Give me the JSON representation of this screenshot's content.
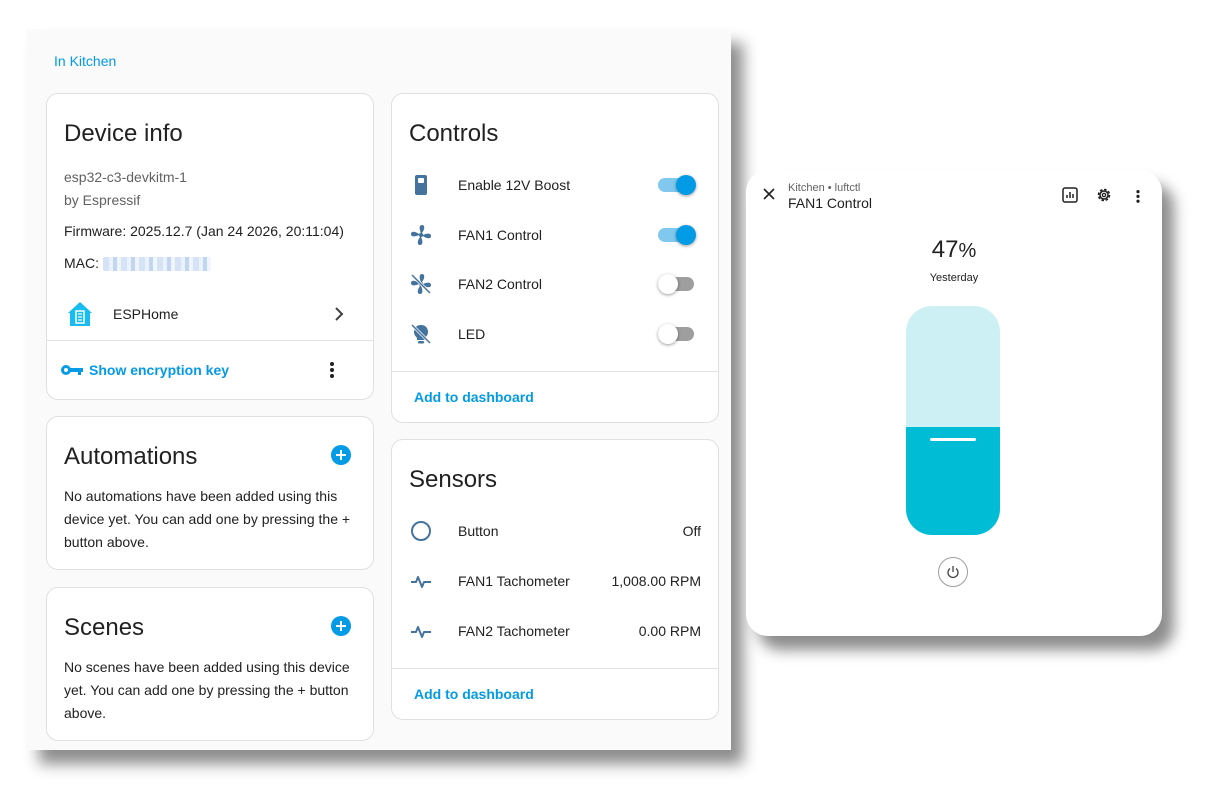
{
  "area_link": "In Kitchen",
  "device_info": {
    "title": "Device info",
    "model": "esp32-c3-devkitm-1",
    "manufacturer": "by Espressif",
    "firmware": "Firmware: 2025.12.7 (Jan 24 2026, 20:11:04)",
    "mac_label": "MAC:",
    "integration": "ESPHome",
    "encryption_action": "Show encryption key"
  },
  "automations": {
    "title": "Automations",
    "empty_text": "No automations have been added using this device yet. You can add one by pressing the + button above."
  },
  "scenes": {
    "title": "Scenes",
    "empty_text": "No scenes have been added using this device yet. You can add one by pressing the + button above."
  },
  "controls": {
    "title": "Controls",
    "items": [
      {
        "label": "Enable 12V Boost",
        "state": "on",
        "icon": "battery-icon"
      },
      {
        "label": "FAN1 Control",
        "state": "on",
        "icon": "fan-icon"
      },
      {
        "label": "FAN2 Control",
        "state": "off",
        "icon": "fan-off-icon"
      },
      {
        "label": "LED",
        "state": "off",
        "icon": "lightbulb-off-icon"
      }
    ],
    "add_to_dashboard": "Add to dashboard"
  },
  "sensors": {
    "title": "Sensors",
    "items": [
      {
        "label": "Button",
        "value": "Off",
        "icon": "circle-outline-icon"
      },
      {
        "label": "FAN1 Tachometer",
        "value": "1,008.00 RPM",
        "icon": "pulse-icon"
      },
      {
        "label": "FAN2 Tachometer",
        "value": "0.00 RPM",
        "icon": "pulse-icon"
      }
    ],
    "add_to_dashboard": "Add to dashboard"
  },
  "more_info": {
    "breadcrumb": "Kitchen • luftctl",
    "title": "FAN1 Control",
    "value": "47",
    "unit": "%",
    "last_changed": "Yesterday",
    "fan_level": 0.47
  },
  "colors": {
    "accent": "#039be5",
    "fan_fill": "#00bcd4",
    "fan_track": "#cdf0f5"
  }
}
